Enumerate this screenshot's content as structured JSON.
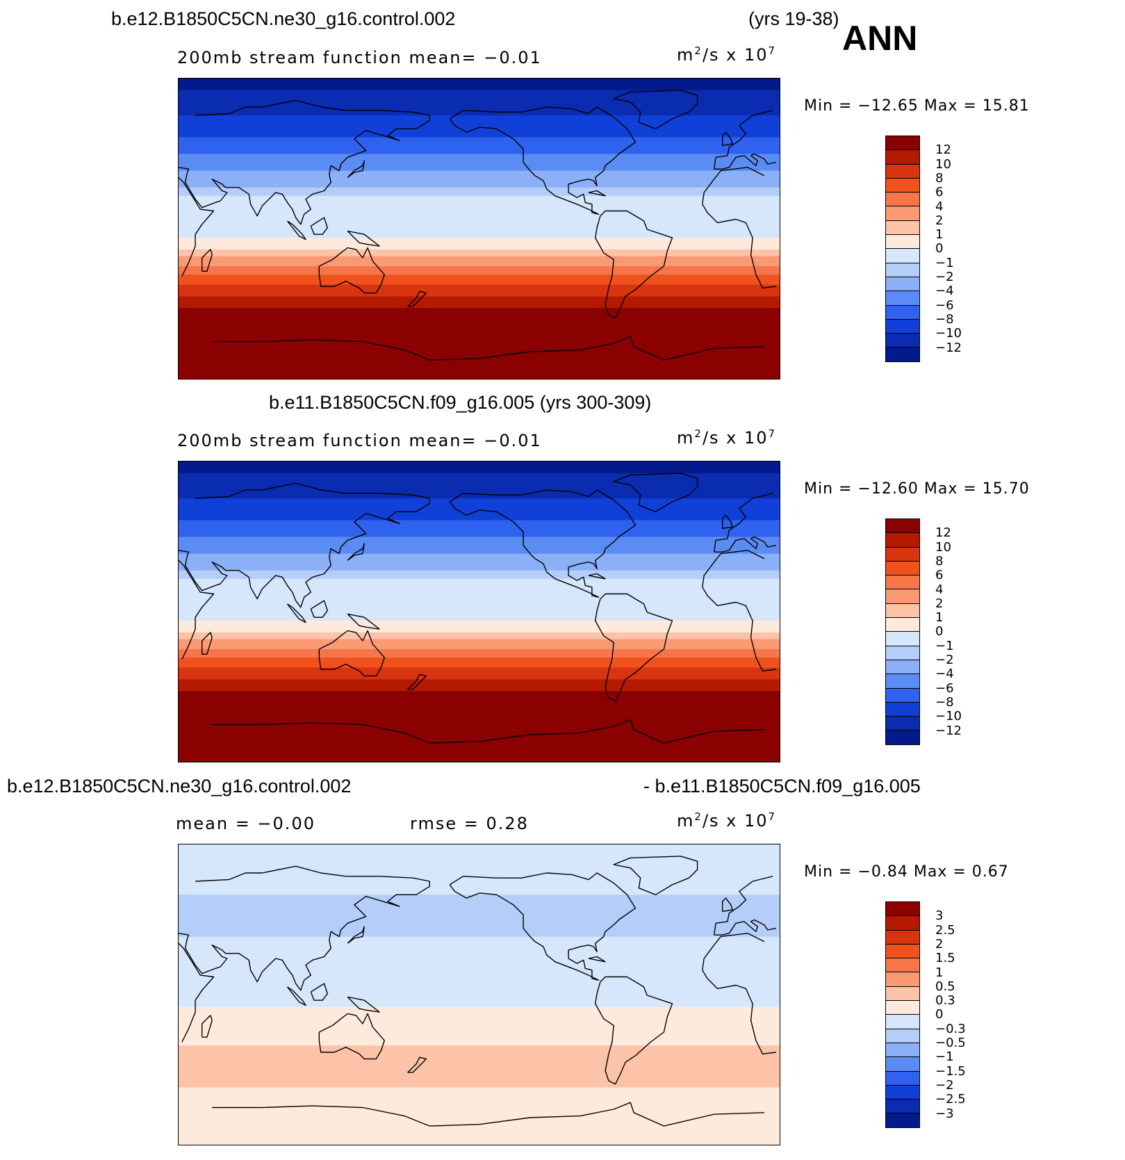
{
  "header": {
    "case1": "b.e12.B1850C5CN.ne30_g16.control.002",
    "years1": "(yrs 19-38)",
    "season": "ANN",
    "case2_title": "b.e11.B1850C5CN.f09_g16.005 (yrs 300-309)",
    "diff_left": "b.e12.B1850C5CN.ne30_g16.control.002",
    "diff_right": "- b.e11.B1850C5CN.f09_g16.005"
  },
  "panels": [
    {
      "subtitle": "200mb stream function   mean=   −0.01",
      "units_base": "m",
      "units_exp1": "2",
      "units_mid": "/s x 10",
      "units_exp2": "7",
      "minmax": "Min = −12.65 Max =   15.81"
    },
    {
      "subtitle": "200mb stream function   mean=   −0.01",
      "units_base": "m",
      "units_exp1": "2",
      "units_mid": "/s x 10",
      "units_exp2": "7",
      "minmax": "Min = −12.60 Max =   15.70"
    },
    {
      "subtitle_mean": "mean =   −0.00",
      "subtitle_rmse": "rmse =    0.28",
      "units_base": "m",
      "units_exp1": "2",
      "units_mid": "/s x 10",
      "units_exp2": "7",
      "minmax": "Min =   −0.84 Max =    0.67"
    }
  ],
  "chart_data": [
    {
      "type": "heatmap",
      "title": "b.e12.B1850C5CN.ne30_g16.control.002 (yrs 19-38) ANN",
      "variable": "200mb stream function",
      "units": "m^2/s x 10^7",
      "mean": -0.01,
      "min": -12.65,
      "max": 15.81,
      "zonal_profile": [
        {
          "lat": 90,
          "value": -13
        },
        {
          "lat": 75,
          "value": -11
        },
        {
          "lat": 60,
          "value": -9
        },
        {
          "lat": 45,
          "value": -6
        },
        {
          "lat": 30,
          "value": -3
        },
        {
          "lat": 20,
          "value": -1
        },
        {
          "lat": 10,
          "value": -0.5
        },
        {
          "lat": 0,
          "value": -0.5
        },
        {
          "lat": -10,
          "value": 0.5
        },
        {
          "lat": -20,
          "value": 3
        },
        {
          "lat": -30,
          "value": 7
        },
        {
          "lat": -40,
          "value": 10
        },
        {
          "lat": -50,
          "value": 13
        },
        {
          "lat": -70,
          "value": 15
        },
        {
          "lat": -90,
          "value": 15
        }
      ]
    },
    {
      "type": "heatmap",
      "title": "b.e11.B1850C5CN.f09_g16.005 (yrs 300-309)",
      "variable": "200mb stream function",
      "units": "m^2/s x 10^7",
      "mean": -0.01,
      "min": -12.6,
      "max": 15.7,
      "zonal_profile": [
        {
          "lat": 90,
          "value": -13
        },
        {
          "lat": 75,
          "value": -11
        },
        {
          "lat": 60,
          "value": -9
        },
        {
          "lat": 45,
          "value": -6
        },
        {
          "lat": 30,
          "value": -3
        },
        {
          "lat": 20,
          "value": -1
        },
        {
          "lat": 10,
          "value": -0.5
        },
        {
          "lat": 0,
          "value": -0.5
        },
        {
          "lat": -10,
          "value": 0.5
        },
        {
          "lat": -20,
          "value": 3
        },
        {
          "lat": -30,
          "value": 7
        },
        {
          "lat": -40,
          "value": 10
        },
        {
          "lat": -50,
          "value": 13
        },
        {
          "lat": -70,
          "value": 15
        },
        {
          "lat": -90,
          "value": 15
        }
      ]
    },
    {
      "type": "heatmap",
      "title": "b.e12.B1850C5CN.ne30_g16.control.002 - b.e11.B1850C5CN.f09_g16.005",
      "variable": "200mb stream function difference",
      "units": "m^2/s x 10^7",
      "mean": -0.0,
      "rmse": 0.28,
      "min": -0.84,
      "max": 0.67,
      "zonal_profile": [
        {
          "lat": 90,
          "value": -0.2
        },
        {
          "lat": 60,
          "value": -0.3
        },
        {
          "lat": 45,
          "value": -0.5
        },
        {
          "lat": 30,
          "value": -0.2
        },
        {
          "lat": 15,
          "value": -0.2
        },
        {
          "lat": 0,
          "value": -0.2
        },
        {
          "lat": -15,
          "value": 0.2
        },
        {
          "lat": -30,
          "value": 0.3
        },
        {
          "lat": -45,
          "value": 0.5
        },
        {
          "lat": -60,
          "value": 0.2
        },
        {
          "lat": -90,
          "value": 0.1
        }
      ]
    }
  ],
  "colorbars": [
    {
      "labels": [
        "12",
        "10",
        "8",
        "6",
        "4",
        "2",
        "1",
        "0",
        "−1",
        "−2",
        "−4",
        "−6",
        "−8",
        "−10",
        "−12"
      ],
      "colors": [
        "#8b0000",
        "#b51a00",
        "#d83410",
        "#f0521e",
        "#f6764a",
        "#f99a75",
        "#fcc3a8",
        "#feeadc",
        "#d6e7fb",
        "#b4cdf9",
        "#8cb0f7",
        "#5b8cf4",
        "#2f62ee",
        "#1040d8",
        "#0b2cb0",
        "#021a8c"
      ]
    },
    {
      "labels": [
        "12",
        "10",
        "8",
        "6",
        "4",
        "2",
        "1",
        "0",
        "−1",
        "−2",
        "−4",
        "−6",
        "−8",
        "−10",
        "−12"
      ],
      "colors": [
        "#8b0000",
        "#b51a00",
        "#d83410",
        "#f0521e",
        "#f6764a",
        "#f99a75",
        "#fcc3a8",
        "#feeadc",
        "#d6e7fb",
        "#b4cdf9",
        "#8cb0f7",
        "#5b8cf4",
        "#2f62ee",
        "#1040d8",
        "#0b2cb0",
        "#021a8c"
      ]
    },
    {
      "labels": [
        "3",
        "2.5",
        "2",
        "1.5",
        "1",
        "0.5",
        "0.3",
        "0",
        "−0.3",
        "−0.5",
        "−1",
        "−1.5",
        "−2",
        "−2.5",
        "−3"
      ],
      "colors": [
        "#8b0000",
        "#b51a00",
        "#d83410",
        "#f0521e",
        "#f6764a",
        "#f99a75",
        "#fcc3a8",
        "#feeadc",
        "#d6e7fb",
        "#b4cdf9",
        "#8cb0f7",
        "#5b8cf4",
        "#2f62ee",
        "#1040d8",
        "#0b2cb0",
        "#021a8c"
      ]
    }
  ]
}
